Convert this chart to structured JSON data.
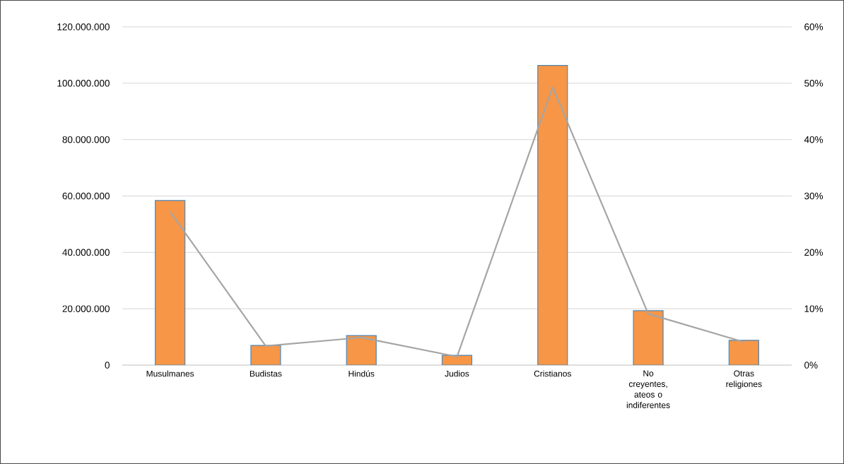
{
  "chart_data": {
    "type": "bar",
    "categories": [
      "Musulmanes",
      "Budistas",
      "Hindús",
      "Judios",
      "Cristianos",
      "No creyentes, ateos o indiferentes",
      "Otras religiones"
    ],
    "series": [
      {
        "color": "#f79646",
        "values": [
          58400000,
          7000000,
          10500000,
          3500000,
          106300000,
          19300000,
          8800000
        ]
      },
      {
        "type": "line",
        "color": "#a5a5a5",
        "axis": "y2",
        "marker": "none",
        "values": [
          27.2,
          3.4,
          4.9,
          1.5,
          49.3,
          9.1,
          4.1
        ]
      }
    ],
    "ylim": [
      0,
      120000000
    ],
    "yticks": [
      {
        "value": 0,
        "label": "0"
      },
      {
        "value": 20000000,
        "label": "20.000.000"
      },
      {
        "value": 40000000,
        "label": "40.000.000"
      },
      {
        "value": 60000000,
        "label": "60.000.000"
      },
      {
        "value": 80000000,
        "label": "80.000.000"
      },
      {
        "value": 100000000,
        "label": "100.000.000"
      },
      {
        "value": 120000000,
        "label": "120.000.000"
      }
    ],
    "y2lim": [
      0,
      60
    ],
    "y2ticks": [
      {
        "value": 0,
        "label": "0%"
      },
      {
        "value": 10,
        "label": "10%"
      },
      {
        "value": 20,
        "label": "20%"
      },
      {
        "value": 30,
        "label": "30%"
      },
      {
        "value": 40,
        "label": "40%"
      },
      {
        "value": 50,
        "label": "50%"
      },
      {
        "value": 60,
        "label": "60%"
      }
    ],
    "grid": "y"
  }
}
